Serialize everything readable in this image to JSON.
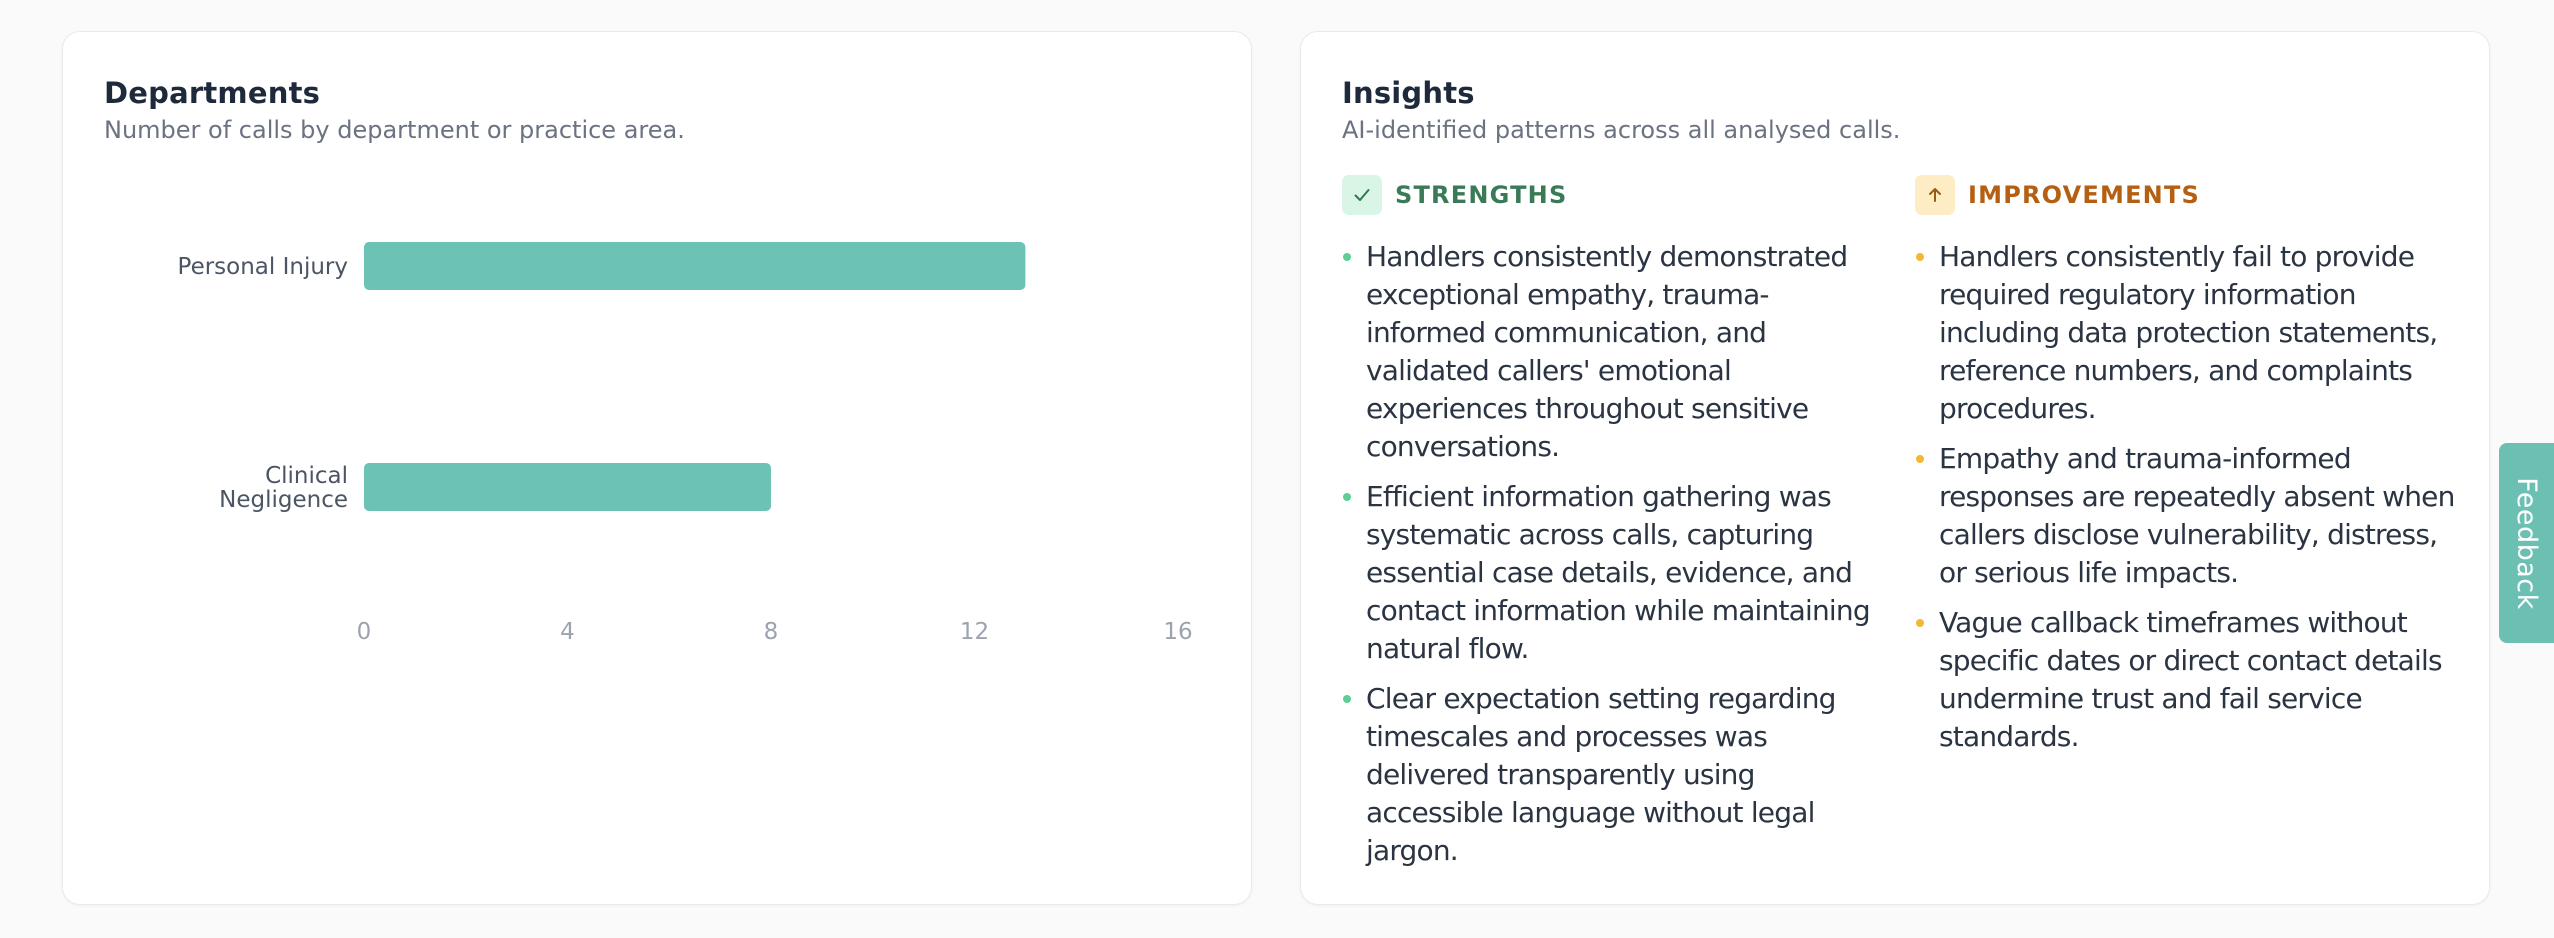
{
  "departments": {
    "title": "Departments",
    "subtitle": "Number of calls by department or practice area."
  },
  "chart_data": {
    "type": "bar",
    "orientation": "horizontal",
    "categories": [
      "Personal Injury",
      "Clinical Negligence"
    ],
    "category_lines": [
      [
        "Personal Injury"
      ],
      [
        "Clinical",
        "Negligence"
      ]
    ],
    "values": [
      13,
      8
    ],
    "xlim": [
      0,
      16
    ],
    "xticks": [
      0,
      4,
      8,
      12,
      16
    ],
    "bar_color": "#6bc2b5",
    "grid": false,
    "legend": "none",
    "title": "",
    "xlabel": "",
    "ylabel": ""
  },
  "insights": {
    "title": "Insights",
    "subtitle": "AI-identified patterns across all analysed calls.",
    "strengths": {
      "icon": "check-icon",
      "title": "STRENGTHS",
      "items": [
        "Handlers consistently demonstrated exceptional empathy, trauma-informed communication, and validated callers' emotional experiences throughout sensitive conversations.",
        "Efficient information gathering was systematic across calls, capturing essential case details, evidence, and contact information while maintaining natural flow.",
        "Clear expectation setting regarding timescales and processes was delivered transparently using accessible language without legal jargon."
      ]
    },
    "improvements": {
      "icon": "arrow-up-icon",
      "title": "IMPROVEMENTS",
      "items": [
        "Handlers consistently fail to provide required regulatory information including data protection statements, reference numbers, and complaints procedures.",
        "Empathy and trauma-informed responses are repeatedly absent when callers disclose vulnerability, distress, or serious life impacts.",
        "Vague callback timeframes without specific dates or direct contact details undermine trust and fail service standards."
      ]
    }
  },
  "feedback": {
    "label": "Feedback"
  },
  "colors": {
    "accent_teal": "#6bc2b5",
    "strength_green": "#3a7a57",
    "improvement_amber": "#b45f12"
  }
}
